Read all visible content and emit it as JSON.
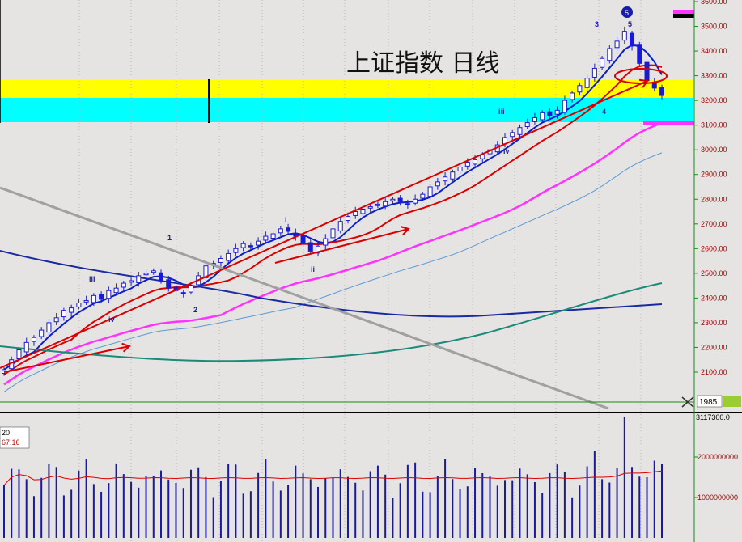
{
  "chart_data": {
    "type": "candlestick",
    "title": "上证指数  日线",
    "y_axis": {
      "ticks": [
        "3600.00",
        "3500.00",
        "3400.00",
        "3300.00",
        "3200.00",
        "3100.00",
        "3000.00",
        "2900.00",
        "2800.00",
        "2700.00",
        "2600.00",
        "2500.00",
        "2400.00",
        "2300.00",
        "2200.00",
        "2100.00"
      ],
      "range": [
        1985,
        3610
      ],
      "current_marker": "1985."
    },
    "price_series": [
      {
        "name": "candles",
        "note_values_close": [
          2110,
          2150,
          2190,
          2220,
          2240,
          2270,
          2300,
          2320,
          2350,
          2360,
          2380,
          2390,
          2410,
          2395,
          2430,
          2440,
          2460,
          2470,
          2490,
          2500,
          2510,
          2470,
          2440,
          2430,
          2420,
          2450,
          2490,
          2530,
          2540,
          2560,
          2580,
          2600,
          2620,
          2610,
          2630,
          2650,
          2660,
          2680,
          2670,
          2650,
          2620,
          2590,
          2610,
          2640,
          2680,
          2710,
          2730,
          2750,
          2760,
          2770,
          2780,
          2790,
          2800,
          2790,
          2780,
          2800,
          2820,
          2850,
          2870,
          2890,
          2910,
          2930,
          2950,
          2960,
          2980,
          3000,
          3020,
          3050,
          3070,
          3090,
          3110,
          3130,
          3150,
          3140,
          3160,
          3200,
          3230,
          3260,
          3290,
          3330,
          3370,
          3410,
          3440,
          3480,
          3420,
          3350,
          3280,
          3250,
          3220
        ]
      }
    ],
    "overlay_lines": [
      {
        "color": "#0b1fc8",
        "label": "short MA"
      },
      {
        "color": "#d80000",
        "label": "medium MA"
      },
      {
        "color": "#ff33ff",
        "label": "long MA"
      },
      {
        "color": "#5a9ad8",
        "label": "longer MA"
      },
      {
        "color": "#1a2aa0",
        "label": "long-term MA"
      },
      {
        "color": "#1b8a7a",
        "label": "trend MA"
      }
    ],
    "wave_labels": [
      "1",
      "2",
      "3",
      "4",
      "5",
      "i",
      "ii",
      "iii",
      "iv",
      "iii",
      "iv"
    ],
    "zones": [
      {
        "color": "#ffff00",
        "from": 3210,
        "to": 3280
      },
      {
        "color": "#00ffff",
        "from": 3110,
        "to": 3210
      }
    ],
    "volume_panel": {
      "legend_line1": "20",
      "legend_line2": "67.16",
      "ticks": [
        "2000000000",
        "1000000000"
      ],
      "top_label": "3117300.0"
    }
  },
  "colors": {
    "background": "#e6e4e2",
    "candle": "#1a1ad0",
    "axis_text": "#9a0000",
    "volume_bars": "#1a1aa0",
    "volume_ma": "#d80000"
  }
}
